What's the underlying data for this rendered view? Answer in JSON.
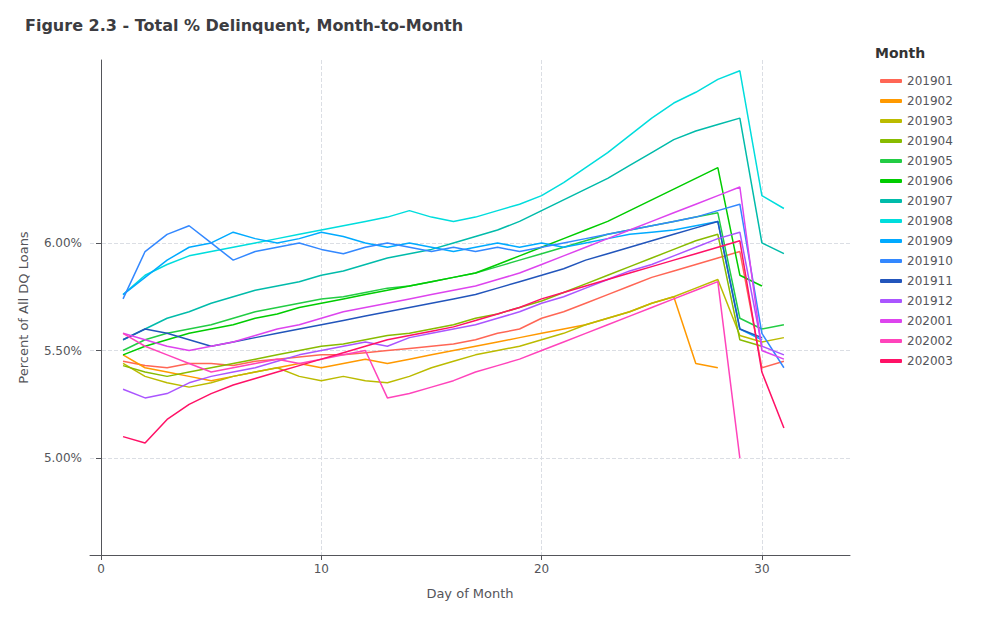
{
  "chart_data": {
    "type": "line",
    "title": "Figure 2.3 - Total % Delinquent, Month-to-Month",
    "x_label": "Day of Month",
    "y_label": "Percent of All DQ Loans",
    "legend_title": "Month",
    "legend": "right",
    "grid": true,
    "xlim": [
      -0.5,
      34
    ],
    "xticks": [
      0,
      10,
      20,
      30
    ],
    "ylim": [
      4.55,
      6.85
    ],
    "yticks": [
      {
        "value": 5.0,
        "label": "5.00%"
      },
      {
        "value": 5.5,
        "label": "5.50%"
      },
      {
        "value": 6.0,
        "label": "6.00%"
      }
    ],
    "series": [
      {
        "name": "201901",
        "color": "#ff6655",
        "x": [
          1,
          2,
          3,
          4,
          5,
          6,
          7,
          8,
          9,
          10,
          11,
          12,
          13,
          14,
          15,
          16,
          17,
          18,
          19,
          20,
          21,
          22,
          23,
          24,
          25,
          26,
          27,
          28,
          29,
          30,
          31
        ],
        "values": [
          5.45,
          5.43,
          5.42,
          5.44,
          5.44,
          5.43,
          5.45,
          5.46,
          5.47,
          5.48,
          5.48,
          5.49,
          5.5,
          5.51,
          5.52,
          5.53,
          5.55,
          5.58,
          5.6,
          5.65,
          5.68,
          5.72,
          5.76,
          5.8,
          5.84,
          5.87,
          5.9,
          5.93,
          5.96,
          5.42,
          5.45
        ]
      },
      {
        "name": "201902",
        "color": "#ff9900",
        "x": [
          1,
          2,
          3,
          4,
          5,
          6,
          7,
          8,
          9,
          10,
          11,
          12,
          13,
          14,
          15,
          16,
          17,
          18,
          19,
          20,
          21,
          22,
          23,
          24,
          25,
          26,
          27,
          28
        ],
        "values": [
          5.48,
          5.42,
          5.4,
          5.38,
          5.36,
          5.38,
          5.4,
          5.42,
          5.44,
          5.42,
          5.44,
          5.46,
          5.44,
          5.46,
          5.48,
          5.5,
          5.52,
          5.54,
          5.56,
          5.58,
          5.6,
          5.62,
          5.65,
          5.68,
          5.72,
          5.75,
          5.44,
          5.42
        ]
      },
      {
        "name": "201903",
        "color": "#bbbb00",
        "x": [
          1,
          2,
          3,
          4,
          5,
          6,
          7,
          8,
          9,
          10,
          11,
          12,
          13,
          14,
          15,
          16,
          17,
          18,
          19,
          20,
          21,
          22,
          23,
          24,
          25,
          26,
          27,
          28,
          29,
          30,
          31
        ],
        "values": [
          5.44,
          5.38,
          5.35,
          5.33,
          5.35,
          5.38,
          5.4,
          5.42,
          5.38,
          5.36,
          5.38,
          5.36,
          5.35,
          5.38,
          5.42,
          5.45,
          5.48,
          5.5,
          5.52,
          5.55,
          5.58,
          5.62,
          5.65,
          5.68,
          5.72,
          5.75,
          5.79,
          5.83,
          5.57,
          5.54,
          5.56
        ]
      },
      {
        "name": "201904",
        "color": "#88bb00",
        "x": [
          1,
          2,
          3,
          4,
          5,
          6,
          7,
          8,
          9,
          10,
          11,
          12,
          13,
          14,
          15,
          16,
          17,
          18,
          19,
          20,
          21,
          22,
          23,
          24,
          25,
          26,
          27,
          28,
          29,
          30
        ],
        "values": [
          5.43,
          5.4,
          5.38,
          5.4,
          5.42,
          5.44,
          5.46,
          5.48,
          5.5,
          5.52,
          5.53,
          5.55,
          5.57,
          5.58,
          5.6,
          5.62,
          5.65,
          5.67,
          5.7,
          5.73,
          5.77,
          5.81,
          5.85,
          5.89,
          5.93,
          5.97,
          6.01,
          6.04,
          5.55,
          5.52
        ]
      },
      {
        "name": "201905",
        "color": "#22cc44",
        "x": [
          1,
          2,
          3,
          4,
          5,
          6,
          7,
          8,
          9,
          10,
          11,
          12,
          13,
          14,
          15,
          16,
          17,
          18,
          19,
          20,
          21,
          22,
          23,
          24,
          25,
          26,
          27,
          28,
          29,
          30,
          31
        ],
        "values": [
          5.5,
          5.55,
          5.58,
          5.6,
          5.62,
          5.65,
          5.68,
          5.7,
          5.72,
          5.74,
          5.75,
          5.77,
          5.79,
          5.8,
          5.82,
          5.84,
          5.86,
          5.89,
          5.92,
          5.95,
          5.98,
          6.01,
          6.04,
          6.06,
          6.08,
          6.1,
          6.12,
          6.14,
          5.65,
          5.6,
          5.62
        ]
      },
      {
        "name": "201906",
        "color": "#00cc00",
        "x": [
          1,
          2,
          3,
          4,
          5,
          6,
          7,
          8,
          9,
          10,
          11,
          12,
          13,
          14,
          15,
          16,
          17,
          18,
          19,
          20,
          21,
          22,
          23,
          24,
          25,
          26,
          27,
          28,
          29,
          30
        ],
        "values": [
          5.48,
          5.52,
          5.55,
          5.58,
          5.6,
          5.62,
          5.65,
          5.67,
          5.7,
          5.72,
          5.74,
          5.76,
          5.78,
          5.8,
          5.82,
          5.84,
          5.86,
          5.9,
          5.94,
          5.98,
          6.02,
          6.06,
          6.1,
          6.15,
          6.2,
          6.25,
          6.3,
          6.35,
          5.85,
          5.8
        ]
      },
      {
        "name": "201907",
        "color": "#00bbaa",
        "x": [
          1,
          2,
          3,
          4,
          5,
          6,
          7,
          8,
          9,
          10,
          11,
          12,
          13,
          14,
          15,
          16,
          17,
          18,
          19,
          20,
          21,
          22,
          23,
          24,
          25,
          26,
          27,
          28,
          29,
          30,
          31
        ],
        "values": [
          5.55,
          5.6,
          5.65,
          5.68,
          5.72,
          5.75,
          5.78,
          5.8,
          5.82,
          5.85,
          5.87,
          5.9,
          5.93,
          5.95,
          5.97,
          6.0,
          6.03,
          6.06,
          6.1,
          6.15,
          6.2,
          6.25,
          6.3,
          6.36,
          6.42,
          6.48,
          6.52,
          6.55,
          6.58,
          6.0,
          5.95
        ]
      },
      {
        "name": "201908",
        "color": "#00dddd",
        "x": [
          1,
          2,
          3,
          4,
          5,
          6,
          7,
          8,
          9,
          10,
          11,
          12,
          13,
          14,
          15,
          16,
          17,
          18,
          19,
          20,
          21,
          22,
          23,
          24,
          25,
          26,
          27,
          28,
          29,
          30,
          31
        ],
        "values": [
          5.76,
          5.85,
          5.9,
          5.94,
          5.96,
          5.98,
          6.0,
          6.02,
          6.04,
          6.06,
          6.08,
          6.1,
          6.12,
          6.15,
          6.12,
          6.1,
          6.12,
          6.15,
          6.18,
          6.22,
          6.28,
          6.35,
          6.42,
          6.5,
          6.58,
          6.65,
          6.7,
          6.76,
          6.8,
          6.22,
          6.16
        ]
      },
      {
        "name": "201909",
        "color": "#00aaff",
        "x": [
          1,
          2,
          3,
          4,
          5,
          6,
          7,
          8,
          9,
          10,
          11,
          12,
          13,
          14,
          15,
          16,
          17,
          18,
          19,
          20,
          21,
          22,
          23,
          24,
          25,
          26,
          27,
          28,
          29,
          30
        ],
        "values": [
          5.76,
          5.84,
          5.92,
          5.98,
          6.0,
          6.05,
          6.02,
          6.0,
          6.02,
          6.05,
          6.03,
          6.0,
          5.98,
          6.0,
          5.98,
          5.96,
          5.98,
          6.0,
          5.98,
          6.0,
          5.98,
          6.0,
          6.02,
          6.04,
          6.05,
          6.06,
          6.08,
          6.1,
          5.6,
          5.55
        ]
      },
      {
        "name": "201910",
        "color": "#3388ff",
        "x": [
          1,
          2,
          3,
          4,
          5,
          6,
          7,
          8,
          9,
          10,
          11,
          12,
          13,
          14,
          15,
          16,
          17,
          18,
          19,
          20,
          21,
          22,
          23,
          24,
          25,
          26,
          27,
          28,
          29,
          30,
          31
        ],
        "values": [
          5.74,
          5.96,
          6.04,
          6.08,
          6.0,
          5.92,
          5.96,
          5.98,
          6.0,
          5.97,
          5.95,
          5.98,
          6.0,
          5.98,
          5.96,
          5.98,
          5.96,
          5.98,
          5.96,
          5.98,
          6.0,
          6.02,
          6.04,
          6.06,
          6.08,
          6.1,
          6.12,
          6.15,
          6.18,
          5.58,
          5.42
        ]
      },
      {
        "name": "201911",
        "color": "#2255bb",
        "x": [
          1,
          2,
          3,
          4,
          5,
          6,
          7,
          8,
          9,
          10,
          11,
          12,
          13,
          14,
          15,
          16,
          17,
          18,
          19,
          20,
          21,
          22,
          23,
          24,
          25,
          26,
          27,
          28,
          29,
          30
        ],
        "values": [
          5.55,
          5.6,
          5.58,
          5.55,
          5.52,
          5.54,
          5.56,
          5.58,
          5.6,
          5.62,
          5.64,
          5.66,
          5.68,
          5.7,
          5.72,
          5.74,
          5.76,
          5.79,
          5.82,
          5.85,
          5.88,
          5.92,
          5.95,
          5.98,
          6.01,
          6.04,
          6.07,
          6.1,
          5.6,
          5.56
        ]
      },
      {
        "name": "201912",
        "color": "#aa55ff",
        "x": [
          1,
          2,
          3,
          4,
          5,
          6,
          7,
          8,
          9,
          10,
          11,
          12,
          13,
          14,
          15,
          16,
          17,
          18,
          19,
          20,
          21,
          22,
          23,
          24,
          25,
          26,
          27,
          28,
          29,
          30,
          31
        ],
        "values": [
          5.32,
          5.28,
          5.3,
          5.35,
          5.38,
          5.4,
          5.42,
          5.45,
          5.48,
          5.5,
          5.52,
          5.54,
          5.52,
          5.56,
          5.58,
          5.6,
          5.62,
          5.65,
          5.68,
          5.72,
          5.75,
          5.79,
          5.83,
          5.87,
          5.9,
          5.94,
          5.98,
          6.02,
          6.05,
          5.52,
          5.48
        ]
      },
      {
        "name": "202001",
        "color": "#dd44ee",
        "x": [
          1,
          2,
          3,
          4,
          5,
          6,
          7,
          8,
          9,
          10,
          11,
          12,
          13,
          14,
          15,
          16,
          17,
          18,
          19,
          20,
          21,
          22,
          23,
          24,
          25,
          26,
          27,
          28,
          29,
          30,
          31
        ],
        "values": [
          5.58,
          5.55,
          5.52,
          5.5,
          5.52,
          5.54,
          5.57,
          5.6,
          5.62,
          5.65,
          5.68,
          5.7,
          5.72,
          5.74,
          5.76,
          5.78,
          5.8,
          5.83,
          5.86,
          5.9,
          5.94,
          5.98,
          6.02,
          6.06,
          6.1,
          6.14,
          6.18,
          6.22,
          6.26,
          5.5,
          5.46
        ]
      },
      {
        "name": "202002",
        "color": "#ff44bb",
        "x": [
          1,
          2,
          3,
          4,
          5,
          6,
          7,
          8,
          9,
          10,
          11,
          12,
          13,
          14,
          15,
          16,
          17,
          18,
          19,
          20,
          21,
          22,
          23,
          24,
          25,
          26,
          27,
          28,
          29
        ],
        "values": [
          5.58,
          5.52,
          5.48,
          5.44,
          5.4,
          5.42,
          5.44,
          5.46,
          5.44,
          5.46,
          5.48,
          5.5,
          5.28,
          5.3,
          5.33,
          5.36,
          5.4,
          5.43,
          5.46,
          5.5,
          5.54,
          5.58,
          5.62,
          5.66,
          5.7,
          5.74,
          5.78,
          5.82,
          5.0
        ]
      },
      {
        "name": "202003",
        "color": "#ff1166",
        "x": [
          1,
          2,
          3,
          4,
          5,
          6,
          7,
          8,
          9,
          10,
          11,
          12,
          13,
          14,
          15,
          16,
          17,
          18,
          19,
          20,
          21,
          22,
          23,
          24,
          25,
          26,
          27,
          28,
          29,
          30,
          31
        ],
        "values": [
          5.1,
          5.07,
          5.18,
          5.25,
          5.3,
          5.34,
          5.37,
          5.4,
          5.43,
          5.46,
          5.49,
          5.52,
          5.55,
          5.57,
          5.59,
          5.61,
          5.64,
          5.67,
          5.7,
          5.74,
          5.77,
          5.8,
          5.83,
          5.86,
          5.89,
          5.92,
          5.95,
          5.98,
          6.01,
          5.4,
          5.14
        ]
      }
    ]
  }
}
